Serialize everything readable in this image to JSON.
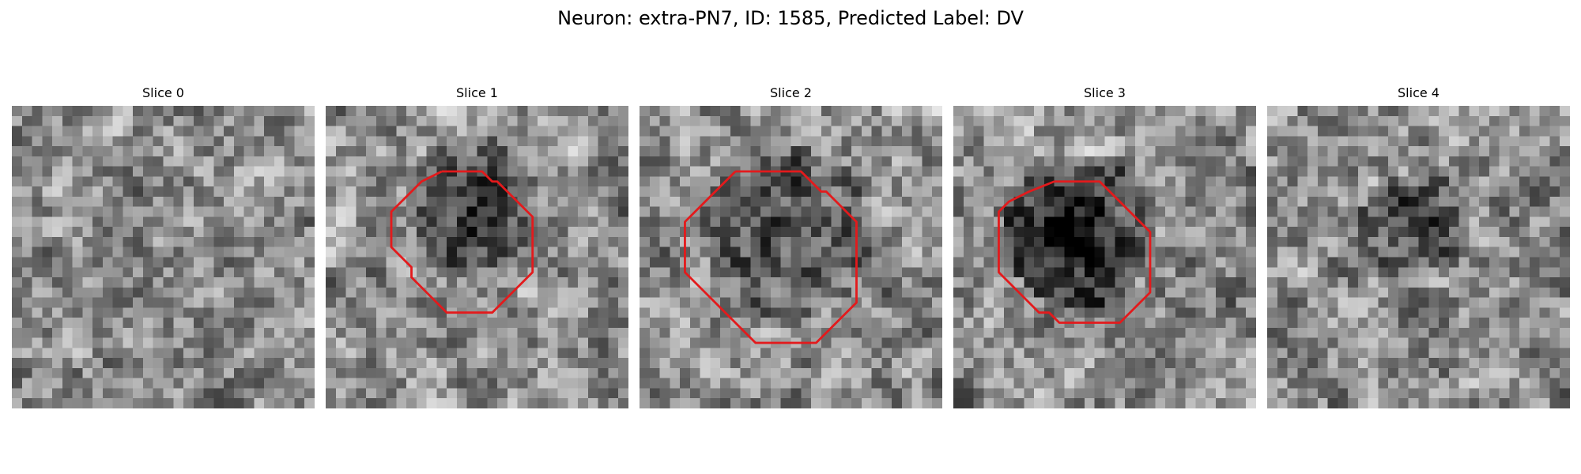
{
  "figure": {
    "title": "Neuron: extra-PN7, ID: 1585, Predicted Label: DV",
    "contour_color": "#e31a1c",
    "colormap": "gray"
  },
  "panels": [
    {
      "title": "Slice 0",
      "has_contour": false,
      "blob": null
    },
    {
      "title": "Slice 1",
      "has_contour": true,
      "blob": {
        "cx": 14.5,
        "cy": 9.5,
        "r": 6.5,
        "depth": 0.38
      },
      "contour": [
        [
          11.5,
          6.5
        ],
        [
          15.5,
          6.5
        ],
        [
          16,
          7
        ],
        [
          16.5,
          7.5
        ],
        [
          17,
          7.5
        ],
        [
          18.5,
          9
        ],
        [
          20.5,
          11
        ],
        [
          20.5,
          16.5
        ],
        [
          18.5,
          18.5
        ],
        [
          16.5,
          20.5
        ],
        [
          12,
          20.5
        ],
        [
          10.5,
          19
        ],
        [
          8.5,
          17
        ],
        [
          8.5,
          16
        ],
        [
          8,
          15.5
        ],
        [
          7,
          14.5
        ],
        [
          6.5,
          14
        ],
        [
          6.5,
          10.5
        ],
        [
          7.5,
          9.5
        ],
        [
          9.5,
          7.5
        ],
        [
          11.5,
          6.5
        ]
      ]
    },
    {
      "title": "Slice 2",
      "has_contour": true,
      "blob": {
        "cx": 14.5,
        "cy": 12.5,
        "r": 8.5,
        "depth": 0.28
      },
      "contour": [
        [
          9.5,
          6.5
        ],
        [
          16,
          6.5
        ],
        [
          17.5,
          8
        ],
        [
          18,
          8.5
        ],
        [
          18.5,
          8.5
        ],
        [
          19.5,
          9.5
        ],
        [
          21.5,
          11.5
        ],
        [
          21.5,
          19.5
        ],
        [
          19.5,
          21.5
        ],
        [
          17.5,
          23.5
        ],
        [
          11.5,
          23.5
        ],
        [
          8.5,
          20.5
        ],
        [
          4.5,
          16.5
        ],
        [
          4.5,
          11.5
        ],
        [
          6.5,
          9.5
        ],
        [
          9.5,
          6.5
        ]
      ]
    },
    {
      "title": "Slice 3",
      "has_contour": true,
      "blob": {
        "cx": 12.5,
        "cy": 12.5,
        "r": 7.5,
        "depth": 0.45
      },
      "contour": [
        [
          10,
          7.5
        ],
        [
          14.5,
          7.5
        ],
        [
          16.5,
          9.5
        ],
        [
          19.5,
          12.5
        ],
        [
          19.5,
          18.5
        ],
        [
          17.5,
          20.5
        ],
        [
          16.5,
          21.5
        ],
        [
          10.5,
          21.5
        ],
        [
          9.5,
          20.5
        ],
        [
          8.5,
          20.5
        ],
        [
          7,
          19
        ],
        [
          5.5,
          17.5
        ],
        [
          4.5,
          16.5
        ],
        [
          4.5,
          10.5
        ],
        [
          5.5,
          9.5
        ],
        [
          7.5,
          8.5
        ],
        [
          10,
          7.5
        ]
      ]
    },
    {
      "title": "Slice 4",
      "has_contour": false,
      "blob": {
        "cx": 14.5,
        "cy": 12,
        "r": 5.5,
        "depth": 0.3
      }
    }
  ]
}
